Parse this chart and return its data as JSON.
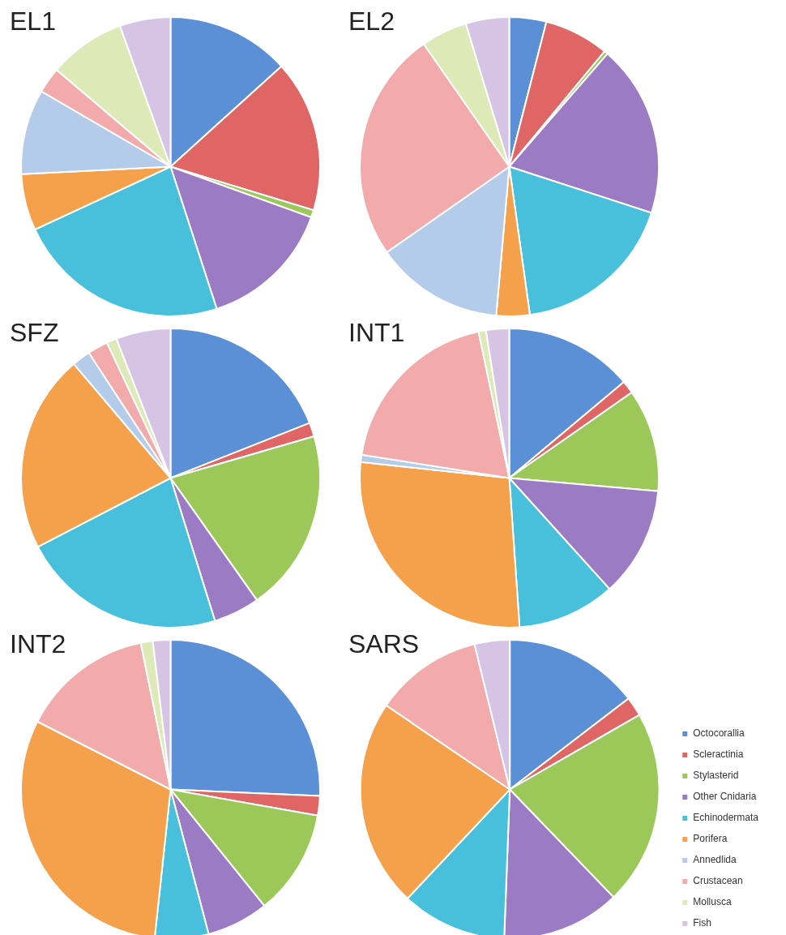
{
  "chart_data": [
    {
      "type": "pie",
      "title": "EL1",
      "categories": [
        null,
        null,
        null,
        null,
        null,
        null,
        null,
        null,
        null,
        null
      ],
      "values": [
        13.3,
        16.4,
        0.8,
        14.5,
        23.1,
        6.1,
        9.2,
        2.8,
        8.3,
        5.5
      ],
      "colors": [
        "#5b8fd6",
        "#e06666",
        "#9cc85a",
        "#9b7cc4",
        "#48c0dc",
        "#f5a04a",
        "#b5cbea",
        "#f2aaaa",
        "#dde9b6",
        "#d5c4e4"
      ],
      "legend": false
    },
    {
      "type": "pie",
      "title": "EL2",
      "categories": [
        null,
        null,
        null,
        null,
        null,
        null,
        null,
        null,
        null,
        null
      ],
      "values": [
        4,
        7,
        0.4,
        18.6,
        17.8,
        3.6,
        13.9,
        25,
        5,
        4.7
      ],
      "colors": [
        "#5b8fd6",
        "#e06666",
        "#9cc85a",
        "#9b7cc4",
        "#48c0dc",
        "#f5a04a",
        "#b5cbea",
        "#f2aaaa",
        "#dde9b6",
        "#d5c4e4"
      ],
      "legend": false
    },
    {
      "type": "pie",
      "title": "SFZ",
      "categories": [
        null,
        null,
        null,
        null,
        null,
        null,
        null,
        null,
        null,
        null
      ],
      "values": [
        19,
        1.5,
        19.7,
        5,
        22.2,
        21.4,
        2,
        2.2,
        1.1,
        5.9
      ],
      "colors": [
        "#5b8fd6",
        "#e06666",
        "#9cc85a",
        "#9b7cc4",
        "#48c0dc",
        "#f5a04a",
        "#b5cbea",
        "#f2aaaa",
        "#dde9b6",
        "#d5c4e4"
      ],
      "legend": false
    },
    {
      "type": "pie",
      "title": "INT1",
      "categories": [
        null,
        null,
        null,
        null,
        null,
        null,
        null,
        null,
        null,
        null
      ],
      "values": [
        13.9,
        1.4,
        11.1,
        11.9,
        10.6,
        27.8,
        0.8,
        19.2,
        0.8,
        2.5
      ],
      "colors": [
        "#5b8fd6",
        "#e06666",
        "#9cc85a",
        "#9b7cc4",
        "#48c0dc",
        "#f5a04a",
        "#b5cbea",
        "#f2aaaa",
        "#dde9b6",
        "#d5c4e4"
      ],
      "legend": false
    },
    {
      "type": "pie",
      "title": "INT2",
      "categories": [
        null,
        null,
        null,
        null,
        null,
        null,
        null,
        null,
        null,
        null
      ],
      "values": [
        25.7,
        2.1,
        11.4,
        6.7,
        5.8,
        30.8,
        0,
        14.3,
        1.3,
        1.9
      ],
      "colors": [
        "#5b8fd6",
        "#e06666",
        "#9cc85a",
        "#9b7cc4",
        "#48c0dc",
        "#f5a04a",
        "#b5cbea",
        "#f2aaaa",
        "#dde9b6",
        "#d5c4e4"
      ],
      "legend": false
    },
    {
      "type": "pie",
      "title": "SARS",
      "categories": [
        "Octocorallia",
        "Scleractinia",
        "Stylasterid",
        "Other Cnidaria",
        "Echinodermata",
        "Porifera",
        "Annedlida",
        "Crustacean",
        "Mollusca",
        "Fish"
      ],
      "values": [
        14.6,
        2.1,
        21.1,
        12.8,
        11.4,
        22.5,
        0,
        11.7,
        0,
        3.8
      ],
      "colors": [
        "#5b8fd6",
        "#e06666",
        "#9cc85a",
        "#9b7cc4",
        "#48c0dc",
        "#f5a04a",
        "#b5cbea",
        "#f2aaaa",
        "#dde9b6",
        "#d5c4e4"
      ],
      "legend": "right"
    }
  ]
}
